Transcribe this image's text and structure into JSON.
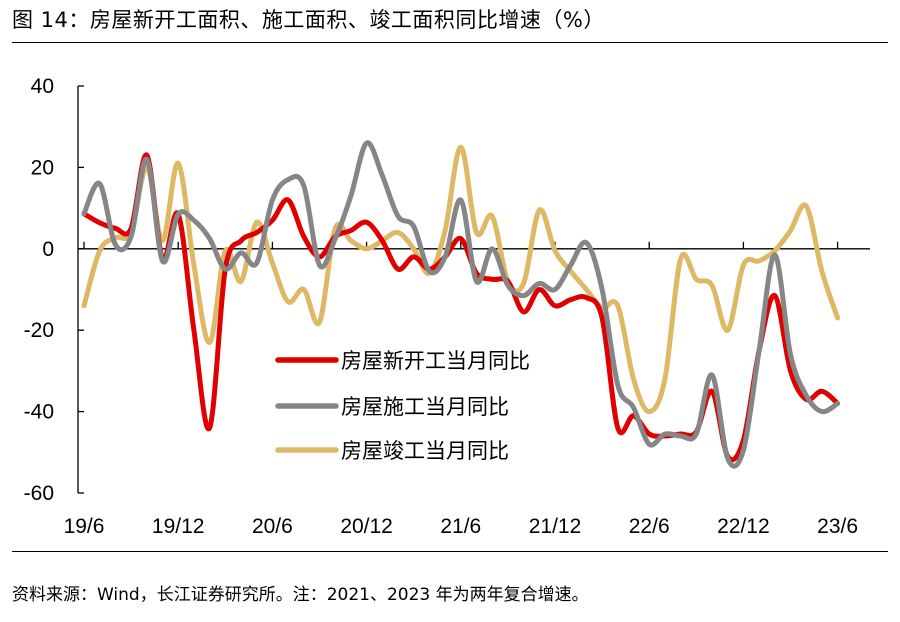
{
  "title": "图 14：房屋新开工面积、施工面积、竣工面积同比增速（%）",
  "source": "资料来源：Wind，长江证券研究所。注：2021、2023 年为两年复合增速。",
  "chart_data": {
    "type": "line",
    "title": "图 14：房屋新开工面积、施工面积、竣工面积同比增速（%）",
    "xlabel": "",
    "ylabel": "",
    "ylim": [
      -60,
      40
    ],
    "yticks": [
      40,
      20,
      0,
      -20,
      -40,
      -60
    ],
    "xtick_labels": [
      "19/6",
      "19/12",
      "20/6",
      "20/12",
      "21/6",
      "21/12",
      "22/6",
      "22/12",
      "23/6"
    ],
    "x_start": "2019-06",
    "x_months": 49,
    "legend_position": "center-left",
    "grid": false,
    "series": [
      {
        "name": "房屋新开工当月同比",
        "color": "#e00000",
        "values": [
          8.6,
          6.4,
          5,
          5,
          23,
          -2.5,
          8.5,
          -20,
          -44,
          -5,
          2,
          4,
          7,
          12,
          3,
          -2,
          3,
          4.5,
          6.5,
          2,
          -5,
          -2,
          -5,
          -2,
          2.5,
          -6,
          -7.5,
          -8,
          -15.5,
          -10,
          -14,
          -12.5,
          -12,
          -17,
          -44,
          -41,
          -45.5,
          -46,
          -45.5,
          -45,
          -35,
          -51,
          -47,
          -25,
          -11.5,
          -30,
          -37,
          -35,
          -38
        ]
      },
      {
        "name": "房屋施工当月同比",
        "color": "#868686",
        "values": [
          8.6,
          16,
          1,
          3,
          22,
          -3,
          8.5,
          7,
          2.5,
          -5,
          -1,
          -3.5,
          12,
          17,
          15.5,
          -4,
          2.5,
          13,
          26,
          18,
          8,
          5.5,
          -5.5,
          -2,
          12,
          -8,
          0,
          -9,
          -11.5,
          -8.5,
          -10,
          -4,
          1.5,
          -10,
          -33.5,
          -39,
          -48,
          -45.5,
          -46,
          -45.5,
          -31,
          -51.5,
          -49.5,
          -25,
          -1.5,
          -26,
          -36,
          -40,
          -38
        ]
      },
      {
        "name": "房屋竣工当月同比",
        "color": "#dfb866",
        "values": [
          -14,
          -0.5,
          2.7,
          4,
          20,
          2,
          21,
          -4,
          -23,
          -0.5,
          -8,
          6.5,
          -3.5,
          -13,
          -10,
          -18,
          5,
          2,
          0,
          2,
          4,
          0,
          -6,
          4.5,
          25,
          4,
          8,
          -8,
          -8.5,
          9.5,
          -0.5,
          -5.5,
          -10,
          -14.5,
          -14,
          -32,
          -40,
          -32,
          -2.5,
          -7.5,
          -9,
          -20,
          -4,
          -3,
          -0.5,
          4.5,
          10.5,
          -5.5,
          -17
        ]
      }
    ]
  }
}
